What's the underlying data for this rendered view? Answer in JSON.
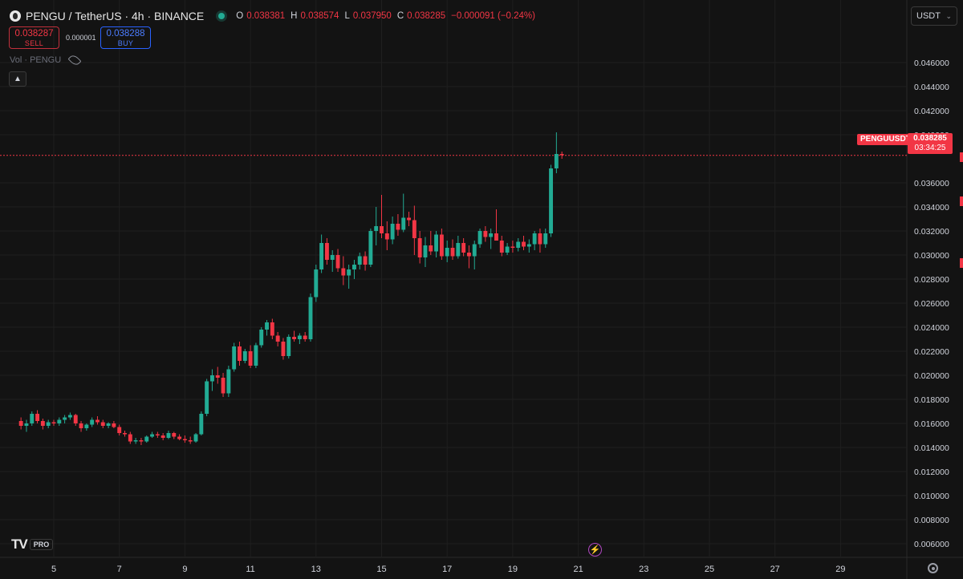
{
  "header": {
    "symbol_title": "PENGU / TetherUS · 4h · BINANCE",
    "ohlc": {
      "open_label": "O",
      "open": "0.038381",
      "high_label": "H",
      "high": "0.038574",
      "low_label": "L",
      "low": "0.037950",
      "close_label": "C",
      "close": "0.038285",
      "change": "−0.000091 (−0.24%)"
    },
    "market_status_color": "#22ab94"
  },
  "trade": {
    "sell_price": "0.038287",
    "sell_label": "SELL",
    "spread": "0.000001",
    "buy_price": "0.038288",
    "buy_label": "BUY"
  },
  "volume_label": "Vol · PENGU",
  "currency_selector": "USDT",
  "last_price": {
    "symbol": "PENGUUSDT",
    "price": "0.038285",
    "countdown": "03:34:25",
    "value": 0.038285
  },
  "branding": {
    "logo": "TV",
    "badge": "PRO"
  },
  "colors": {
    "up": "#22ab94",
    "down": "#f23645",
    "background": "#131313",
    "grid": "#1f1f1f"
  },
  "chart_data": {
    "type": "candlestick",
    "title": "PENGU / TetherUS · 4h · BINANCE",
    "ylim": [
      0.005,
      0.0475
    ],
    "y_ticks": [
      "0.046000",
      "0.044000",
      "0.042000",
      "0.040000",
      "0.036000",
      "0.034000",
      "0.032000",
      "0.030000",
      "0.028000",
      "0.026000",
      "0.024000",
      "0.022000",
      "0.020000",
      "0.018000",
      "0.016000",
      "0.014000",
      "0.012000",
      "0.010000",
      "0.008000",
      "0.006000"
    ],
    "x_ticks": [
      "5",
      "7",
      "9",
      "11",
      "13",
      "15",
      "17",
      "19",
      "21",
      "23",
      "25",
      "27",
      "29"
    ],
    "x_tick_days": [
      5,
      7,
      9,
      11,
      13,
      15,
      17,
      19,
      21,
      23,
      25,
      27,
      29
    ],
    "first_candle_day": 4.0,
    "candles_per_day": 6,
    "grid": true,
    "candles": [
      [
        0.0162,
        0.0165,
        0.0155,
        0.0158
      ],
      [
        0.0158,
        0.0163,
        0.0153,
        0.016
      ],
      [
        0.016,
        0.017,
        0.0158,
        0.0168
      ],
      [
        0.0168,
        0.0171,
        0.016,
        0.0162
      ],
      [
        0.0162,
        0.0164,
        0.0155,
        0.0158
      ],
      [
        0.0158,
        0.0163,
        0.0156,
        0.0161
      ],
      [
        0.0161,
        0.0163,
        0.0158,
        0.016
      ],
      [
        0.016,
        0.0165,
        0.0158,
        0.0163
      ],
      [
        0.0163,
        0.0167,
        0.016,
        0.0165
      ],
      [
        0.0165,
        0.0169,
        0.0163,
        0.0167
      ],
      [
        0.0167,
        0.0168,
        0.0158,
        0.016
      ],
      [
        0.016,
        0.0162,
        0.0153,
        0.0156
      ],
      [
        0.0156,
        0.016,
        0.0154,
        0.0159
      ],
      [
        0.0159,
        0.0165,
        0.0157,
        0.0163
      ],
      [
        0.0163,
        0.0166,
        0.0159,
        0.0161
      ],
      [
        0.0161,
        0.0163,
        0.0156,
        0.0158
      ],
      [
        0.0158,
        0.0161,
        0.0156,
        0.016
      ],
      [
        0.016,
        0.0162,
        0.0156,
        0.0157
      ],
      [
        0.0157,
        0.0159,
        0.015,
        0.0152
      ],
      [
        0.0152,
        0.0154,
        0.0149,
        0.0151
      ],
      [
        0.0151,
        0.0153,
        0.0143,
        0.0145
      ],
      [
        0.0145,
        0.0148,
        0.0143,
        0.0146
      ],
      [
        0.0146,
        0.0148,
        0.0142,
        0.0145
      ],
      [
        0.0145,
        0.015,
        0.0144,
        0.0149
      ],
      [
        0.0149,
        0.0153,
        0.0148,
        0.0151
      ],
      [
        0.0151,
        0.0153,
        0.0148,
        0.015
      ],
      [
        0.015,
        0.0152,
        0.0146,
        0.0148
      ],
      [
        0.0148,
        0.0154,
        0.0147,
        0.0152
      ],
      [
        0.0152,
        0.0153,
        0.0147,
        0.0149
      ],
      [
        0.0149,
        0.0151,
        0.0146,
        0.0147
      ],
      [
        0.0147,
        0.015,
        0.0144,
        0.0146
      ],
      [
        0.0146,
        0.0149,
        0.0143,
        0.0145
      ],
      [
        0.0145,
        0.0152,
        0.0144,
        0.0151
      ],
      [
        0.0151,
        0.017,
        0.015,
        0.0168
      ],
      [
        0.0168,
        0.0197,
        0.0166,
        0.0195
      ],
      [
        0.0195,
        0.0205,
        0.0187,
        0.02
      ],
      [
        0.02,
        0.0207,
        0.0193,
        0.0198
      ],
      [
        0.0198,
        0.0202,
        0.0182,
        0.0185
      ],
      [
        0.0185,
        0.0208,
        0.0182,
        0.0205
      ],
      [
        0.0205,
        0.0227,
        0.0203,
        0.0224
      ],
      [
        0.0224,
        0.0228,
        0.0208,
        0.0212
      ],
      [
        0.0212,
        0.0222,
        0.021,
        0.022
      ],
      [
        0.022,
        0.0225,
        0.0206,
        0.0208
      ],
      [
        0.0208,
        0.0227,
        0.0206,
        0.0225
      ],
      [
        0.0225,
        0.024,
        0.0223,
        0.0238
      ],
      [
        0.0238,
        0.0246,
        0.0233,
        0.0244
      ],
      [
        0.0244,
        0.0247,
        0.023,
        0.0233
      ],
      [
        0.0233,
        0.0236,
        0.0224,
        0.0228
      ],
      [
        0.0228,
        0.0231,
        0.0213,
        0.0216
      ],
      [
        0.0216,
        0.0234,
        0.0214,
        0.0232
      ],
      [
        0.0232,
        0.0237,
        0.0228,
        0.023
      ],
      [
        0.023,
        0.0235,
        0.0226,
        0.0233
      ],
      [
        0.0233,
        0.0236,
        0.0228,
        0.023
      ],
      [
        0.023,
        0.0268,
        0.0228,
        0.0265
      ],
      [
        0.0265,
        0.0292,
        0.0261,
        0.0288
      ],
      [
        0.0288,
        0.0317,
        0.0285,
        0.031
      ],
      [
        0.031,
        0.0314,
        0.0292,
        0.0296
      ],
      [
        0.0296,
        0.0304,
        0.0286,
        0.03
      ],
      [
        0.03,
        0.0305,
        0.0286,
        0.0289
      ],
      [
        0.0289,
        0.0299,
        0.0275,
        0.0283
      ],
      [
        0.0283,
        0.0292,
        0.0272,
        0.0288
      ],
      [
        0.0288,
        0.0296,
        0.028,
        0.0292
      ],
      [
        0.0292,
        0.0302,
        0.0288,
        0.0299
      ],
      [
        0.0299,
        0.0303,
        0.0287,
        0.0292
      ],
      [
        0.0292,
        0.0322,
        0.029,
        0.032
      ],
      [
        0.032,
        0.034,
        0.0308,
        0.0324
      ],
      [
        0.0324,
        0.035,
        0.0314,
        0.0318
      ],
      [
        0.0318,
        0.0328,
        0.0304,
        0.0313
      ],
      [
        0.0313,
        0.0332,
        0.0309,
        0.0326
      ],
      [
        0.0326,
        0.0334,
        0.0316,
        0.0321
      ],
      [
        0.0321,
        0.0351,
        0.0319,
        0.0331
      ],
      [
        0.0331,
        0.0336,
        0.0324,
        0.0329
      ],
      [
        0.0329,
        0.0341,
        0.03,
        0.0314
      ],
      [
        0.0314,
        0.032,
        0.0293,
        0.0298
      ],
      [
        0.0298,
        0.0315,
        0.029,
        0.0308
      ],
      [
        0.0308,
        0.032,
        0.03,
        0.0303
      ],
      [
        0.0303,
        0.032,
        0.0298,
        0.0317
      ],
      [
        0.0317,
        0.0322,
        0.0296,
        0.0299
      ],
      [
        0.0299,
        0.0312,
        0.0294,
        0.0306
      ],
      [
        0.0306,
        0.0313,
        0.0296,
        0.0299
      ],
      [
        0.0299,
        0.0316,
        0.0297,
        0.031
      ],
      [
        0.031,
        0.0314,
        0.0299,
        0.0302
      ],
      [
        0.0302,
        0.0308,
        0.0289,
        0.0299
      ],
      [
        0.0299,
        0.0312,
        0.0288,
        0.0309
      ],
      [
        0.0309,
        0.0322,
        0.0306,
        0.032
      ],
      [
        0.032,
        0.0324,
        0.0311,
        0.0315
      ],
      [
        0.0315,
        0.0322,
        0.0305,
        0.0318
      ],
      [
        0.0318,
        0.0338,
        0.0313,
        0.0312
      ],
      [
        0.0312,
        0.0316,
        0.0299,
        0.0302
      ],
      [
        0.0302,
        0.031,
        0.03,
        0.0307
      ],
      [
        0.0307,
        0.0312,
        0.0302,
        0.0306
      ],
      [
        0.0306,
        0.0314,
        0.0303,
        0.0311
      ],
      [
        0.0311,
        0.0316,
        0.0304,
        0.0307
      ],
      [
        0.0307,
        0.0313,
        0.0302,
        0.0309
      ],
      [
        0.0309,
        0.032,
        0.0304,
        0.0318
      ],
      [
        0.0318,
        0.0322,
        0.0302,
        0.0309
      ],
      [
        0.0309,
        0.0322,
        0.0306,
        0.0318
      ],
      [
        0.0318,
        0.0375,
        0.0315,
        0.0372
      ],
      [
        0.0372,
        0.0402,
        0.0368,
        0.0384
      ],
      [
        0.0384,
        0.0386,
        0.038,
        0.0383
      ]
    ]
  }
}
